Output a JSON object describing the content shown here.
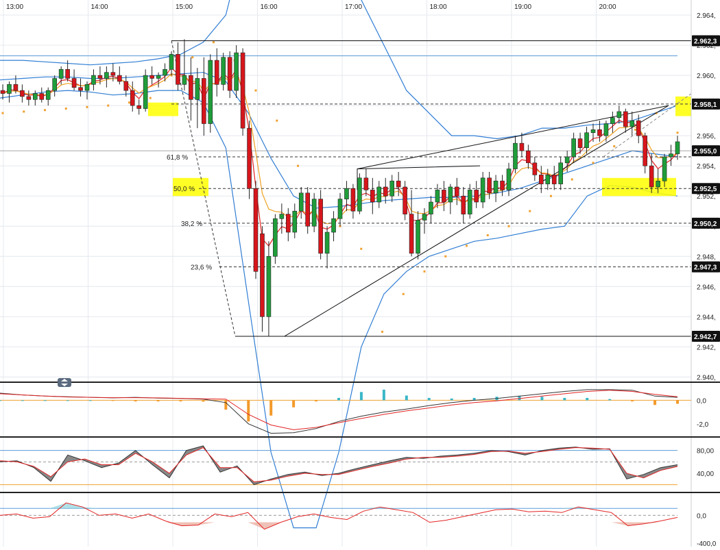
{
  "chart_data": {
    "type": "candlestick",
    "x_labels": [
      "13:00",
      "14:00",
      "15:00",
      "16:00",
      "17:00",
      "18:00",
      "19:00",
      "20:00"
    ],
    "y_axis": {
      "ticks": [
        "2.964,",
        "2.962,",
        "2.960,",
        "2.958,",
        "2.956,",
        "2.954,",
        "2.952,",
        "2.950,",
        "2.948,",
        "2.946,",
        "2.944,",
        "2.942,",
        "2.940,"
      ],
      "range": [
        2.9397,
        2.965
      ]
    },
    "price_tags": [
      {
        "label": "2.962,3",
        "value": 2.9623
      },
      {
        "label": "2.958,1",
        "value": 2.9581
      },
      {
        "label": "2.955,0",
        "value": 2.955
      },
      {
        "label": "2.952,5",
        "value": 2.9525
      },
      {
        "label": "2.950,2",
        "value": 2.9502
      },
      {
        "label": "2.947,3",
        "value": 2.9473
      },
      {
        "label": "2.942,7",
        "value": 2.9427
      }
    ],
    "fib_levels": [
      {
        "label": "61,8 %",
        "value": 2.9546
      },
      {
        "label": "50,0 %",
        "value": 2.9525
      },
      {
        "label": "38,2 %",
        "value": 2.9502
      },
      {
        "label": "23,6 %",
        "value": 2.9473
      }
    ],
    "candles": [
      [
        2.959,
        2.9594,
        2.9584,
        2.9588
      ],
      [
        2.9588,
        2.9596,
        2.9582,
        2.9594
      ],
      [
        2.9594,
        2.96,
        2.9588,
        2.959
      ],
      [
        2.959,
        2.9594,
        2.9582,
        2.9586
      ],
      [
        2.9586,
        2.959,
        2.958,
        2.9584
      ],
      [
        2.9584,
        2.959,
        2.958,
        2.9588
      ],
      [
        2.9588,
        2.9592,
        2.9582,
        2.9584
      ],
      [
        2.9584,
        2.9592,
        2.958,
        2.959
      ],
      [
        2.959,
        2.96,
        2.9586,
        2.9598
      ],
      [
        2.9598,
        2.9606,
        2.9594,
        2.9604
      ],
      [
        2.9604,
        2.961,
        2.9596,
        2.9598
      ],
      [
        2.9598,
        2.9604,
        2.959,
        2.9592
      ],
      [
        2.9592,
        2.9598,
        2.9586,
        2.959
      ],
      [
        2.959,
        2.9596,
        2.9584,
        2.9594
      ],
      [
        2.9594,
        2.9604,
        2.959,
        2.96
      ],
      [
        2.96,
        2.9606,
        2.9594,
        2.9598
      ],
      [
        2.9598,
        2.9606,
        2.9592,
        2.9602
      ],
      [
        2.9602,
        2.9608,
        2.9596,
        2.96
      ],
      [
        2.96,
        2.9606,
        2.9594,
        2.9596
      ],
      [
        2.9596,
        2.96,
        2.9586,
        2.959
      ],
      [
        2.959,
        2.9596,
        2.9576,
        2.958
      ],
      [
        2.958,
        2.9584,
        2.9574,
        2.9578
      ],
      [
        2.9578,
        2.9604,
        2.9576,
        2.96
      ],
      [
        2.96,
        2.9606,
        2.9594,
        2.9598
      ],
      [
        2.9598,
        2.9602,
        2.9592,
        2.96
      ],
      [
        2.96,
        2.9608,
        2.9596,
        2.9604
      ],
      [
        2.9604,
        2.9616,
        2.96,
        2.9614
      ],
      [
        2.9614,
        2.9622,
        2.959,
        2.9594
      ],
      [
        2.9594,
        2.9624,
        2.959,
        2.96
      ],
      [
        2.96,
        2.9612,
        2.957,
        2.9584
      ],
      [
        2.9584,
        2.9605,
        2.9565,
        2.9598
      ],
      [
        2.9598,
        2.9612,
        2.956,
        2.9568
      ],
      [
        2.9568,
        2.9614,
        2.9562,
        2.961
      ],
      [
        2.961,
        2.9618,
        2.9586,
        2.9594
      ],
      [
        2.9594,
        2.9615,
        2.959,
        2.9612
      ],
      [
        2.9612,
        2.9616,
        2.9585,
        2.959
      ],
      [
        2.959,
        2.962,
        2.9585,
        2.9615
      ],
      [
        2.9615,
        2.9618,
        2.956,
        2.9565
      ],
      [
        2.9565,
        2.957,
        2.9518,
        2.9525
      ],
      [
        2.9525,
        2.953,
        2.9465,
        2.947
      ],
      [
        2.9495,
        2.95,
        2.943,
        2.944
      ],
      [
        2.944,
        2.949,
        2.9427,
        2.948
      ],
      [
        2.948,
        2.9508,
        2.9475,
        2.9505
      ],
      [
        2.9505,
        2.9515,
        2.9495,
        2.9508
      ],
      [
        2.9508,
        2.9512,
        2.949,
        2.9496
      ],
      [
        2.9496,
        2.9515,
        2.9492,
        2.951
      ],
      [
        2.951,
        2.9526,
        2.9505,
        2.9522
      ],
      [
        2.9522,
        2.9526,
        2.9495,
        2.95
      ],
      [
        2.95,
        2.9522,
        2.9496,
        2.9518
      ],
      [
        2.9518,
        2.9524,
        2.9478,
        2.9482
      ],
      [
        2.9482,
        2.95,
        2.9472,
        2.9496
      ],
      [
        2.9496,
        2.951,
        2.949,
        2.9505
      ],
      [
        2.9505,
        2.9522,
        2.95,
        2.9518
      ],
      [
        2.9518,
        2.953,
        2.951,
        2.9525
      ],
      [
        2.9525,
        2.9528,
        2.9505,
        2.951
      ],
      [
        2.951,
        2.9535,
        2.9508,
        2.9532
      ],
      [
        2.9532,
        2.9538,
        2.952,
        2.9524
      ],
      [
        2.9524,
        2.9532,
        2.9508,
        2.9516
      ],
      [
        2.9516,
        2.953,
        2.9512,
        2.9526
      ],
      [
        2.9526,
        2.9532,
        2.9515,
        2.952
      ],
      [
        2.952,
        2.9534,
        2.9516,
        2.953
      ],
      [
        2.953,
        2.9536,
        2.952,
        2.9526
      ],
      [
        2.9526,
        2.953,
        2.9504,
        2.9508
      ],
      [
        2.9508,
        2.9524,
        2.948,
        2.9482
      ],
      [
        2.9482,
        2.951,
        2.9478,
        2.9504
      ],
      [
        2.9504,
        2.9512,
        2.9495,
        2.9508
      ],
      [
        2.9508,
        2.952,
        2.9502,
        2.9516
      ],
      [
        2.9516,
        2.9528,
        2.9512,
        2.9524
      ],
      [
        2.9524,
        2.953,
        2.951,
        2.9516
      ],
      [
        2.9516,
        2.9528,
        2.9508,
        2.9526
      ],
      [
        2.9526,
        2.9532,
        2.9514,
        2.952
      ],
      [
        2.952,
        2.9526,
        2.9502,
        2.9508
      ],
      [
        2.9508,
        2.9528,
        2.9505,
        2.9524
      ],
      [
        2.9524,
        2.953,
        2.9512,
        2.9516
      ],
      [
        2.9516,
        2.9536,
        2.9512,
        2.9532
      ],
      [
        2.9532,
        2.9536,
        2.9518,
        2.9522
      ],
      [
        2.9522,
        2.9534,
        2.9516,
        2.953
      ],
      [
        2.953,
        2.9534,
        2.952,
        2.9524
      ],
      [
        2.9524,
        2.9542,
        2.952,
        2.9538
      ],
      [
        2.9538,
        2.956,
        2.9535,
        2.9555
      ],
      [
        2.9555,
        2.9562,
        2.9546,
        2.955
      ],
      [
        2.955,
        2.9554,
        2.9538,
        2.9542
      ],
      [
        2.9542,
        2.9546,
        2.953,
        2.9534
      ],
      [
        2.9534,
        2.954,
        2.9522,
        2.9528
      ],
      [
        2.9528,
        2.9538,
        2.9524,
        2.9534
      ],
      [
        2.9534,
        2.954,
        2.9524,
        2.9528
      ],
      [
        2.9528,
        2.9546,
        2.9524,
        2.9542
      ],
      [
        2.9542,
        2.955,
        2.9536,
        2.9546
      ],
      [
        2.9546,
        2.9562,
        2.9542,
        2.9558
      ],
      [
        2.9558,
        2.9562,
        2.9548,
        2.9552
      ],
      [
        2.9552,
        2.9566,
        2.9548,
        2.9562
      ],
      [
        2.9562,
        2.9568,
        2.9556,
        2.9564
      ],
      [
        2.9564,
        2.957,
        2.9556,
        2.956
      ],
      [
        2.956,
        2.957,
        2.9556,
        2.9568
      ],
      [
        2.9568,
        2.9576,
        2.9562,
        2.9572
      ],
      [
        2.9572,
        2.958,
        2.9568,
        2.9576
      ],
      [
        2.9576,
        2.9578,
        2.9562,
        2.9566
      ],
      [
        2.9566,
        2.9576,
        2.956,
        2.957
      ],
      [
        2.957,
        2.9574,
        2.9555,
        2.956
      ],
      [
        2.956,
        2.9562,
        2.9535,
        2.954
      ],
      [
        2.954,
        2.9548,
        2.9522,
        2.9526
      ],
      [
        2.9526,
        2.9538,
        2.9522,
        2.953
      ],
      [
        2.953,
        2.9548,
        2.9526,
        2.9546
      ],
      [
        2.9546,
        2.9554,
        2.954,
        2.9548
      ],
      [
        2.9548,
        2.956,
        2.9544,
        2.9556
      ]
    ],
    "bollinger": {
      "upper": [
        2.961,
        2.961,
        2.9609,
        2.9608,
        2.9607,
        2.9608,
        2.9609,
        2.9611,
        2.9614,
        2.9622,
        2.964,
        2.97,
        2.975,
        2.976,
        2.974,
        2.97,
        2.965,
        2.962,
        2.959,
        2.9575,
        2.956,
        2.956,
        2.9558,
        2.956,
        2.9565,
        2.9565,
        2.9567,
        2.9568,
        2.957,
        2.9575,
        2.958
      ],
      "middle": [
        2.9597,
        2.9598,
        2.9599,
        2.9599,
        2.9598,
        2.9598,
        2.9599,
        2.96,
        2.9601,
        2.9602,
        2.9596,
        2.9575,
        2.9545,
        2.952,
        2.9512,
        2.9513,
        2.9515,
        2.9517,
        2.9518,
        2.9519,
        2.9519,
        2.952,
        2.9522,
        2.9525,
        2.953,
        2.9535,
        2.954,
        2.9545,
        2.955,
        2.9548,
        2.9546
      ],
      "lower": [
        2.9585,
        2.9587,
        2.9589,
        2.959,
        2.9589,
        2.9587,
        2.9588,
        2.959,
        2.959,
        2.9582,
        2.9552,
        2.945,
        2.935,
        2.93,
        2.93,
        2.935,
        2.942,
        2.9455,
        2.947,
        2.948,
        2.9485,
        2.949,
        2.9492,
        2.9495,
        2.9498,
        2.95,
        2.952,
        2.9527,
        2.9526,
        2.9522,
        2.952
      ]
    },
    "sar": [
      2.9575,
      2.9576,
      2.9577,
      2.9578,
      2.9579,
      2.958,
      2.9582,
      2.9585,
      2.96,
      2.9612,
      2.9622,
      2.961,
      2.959,
      2.957,
      2.954,
      2.9515,
      2.95,
      2.9485,
      2.943,
      2.9455,
      2.947,
      2.948,
      2.9487,
      2.9494,
      2.95,
      2.951,
      2.952,
      2.9531,
      2.9542,
      2.9553,
      2.9564,
      2.9575,
      2.9562
    ],
    "macd": {
      "ticks": [
        "0,0",
        "-2,0"
      ],
      "range": [
        -3.0,
        1.3
      ],
      "histogram": [
        0,
        0,
        0,
        0,
        0,
        -0.05,
        -0.1,
        -0.1,
        -0.1,
        -0.12,
        -0.8,
        -1.8,
        -1.3,
        -0.6,
        -0.1,
        0.2,
        0.7,
        0.9,
        0.4,
        0.2,
        0.15,
        0.2,
        0.3,
        0.35,
        0.3,
        0.2,
        0.2,
        0.1,
        -0.1,
        -0.4,
        -0.3
      ],
      "macd": [
        0.6,
        0.45,
        0.35,
        0.3,
        0.25,
        0.2,
        0.25,
        0.18,
        0.15,
        0.1,
        -0.2,
        -2.0,
        -2.8,
        -2.75,
        -2.4,
        -1.8,
        -1.35,
        -1.0,
        -0.75,
        -0.45,
        -0.2,
        0.0,
        0.15,
        0.35,
        0.55,
        0.75,
        0.9,
        0.9,
        0.85,
        0.35,
        0.25
      ],
      "signal": [
        0.55,
        0.45,
        0.35,
        0.28,
        0.25,
        0.22,
        0.22,
        0.2,
        0.16,
        0.12,
        0.1,
        -1.2,
        -2.1,
        -2.5,
        -2.3,
        -1.9,
        -1.55,
        -1.2,
        -0.9,
        -0.65,
        -0.4,
        -0.2,
        -0.05,
        0.15,
        0.35,
        0.55,
        0.75,
        0.85,
        0.75,
        0.5,
        0.3
      ]
    },
    "stochastic": {
      "ticks": [
        "80,00",
        "40,00"
      ],
      "range": [
        10,
        100
      ],
      "k": [
        60,
        62,
        50,
        26,
        72,
        62,
        50,
        58,
        80,
        55,
        32,
        80,
        88,
        42,
        53,
        20,
        30,
        38,
        42,
        36,
        40,
        48,
        55,
        62,
        68,
        66,
        70,
        72,
        75,
        80,
        78,
        72,
        80,
        84,
        86,
        82,
        83,
        30,
        38,
        50,
        55
      ],
      "d": [
        62,
        60,
        52,
        34,
        60,
        65,
        55,
        55,
        75,
        60,
        40,
        72,
        85,
        50,
        50,
        25,
        28,
        35,
        40,
        38,
        38,
        45,
        52,
        58,
        65,
        68,
        68,
        70,
        73,
        78,
        79,
        75,
        78,
        82,
        85,
        84,
        82,
        40,
        32,
        45,
        52
      ]
    },
    "cci": {
      "ticks": [
        "0,0",
        "-400,0"
      ],
      "range": [
        -450,
        300
      ],
      "values": [
        0,
        20,
        -40,
        -20,
        180,
        120,
        0,
        20,
        -40,
        20,
        -80,
        -150,
        -140,
        20,
        -20,
        40,
        -200,
        -100,
        -20,
        20,
        -30,
        -60,
        60,
        120,
        80,
        40,
        -100,
        -70,
        -20,
        30,
        80,
        90,
        50,
        60,
        40,
        120,
        80,
        40,
        -150,
        -120,
        -80,
        -30
      ]
    }
  }
}
